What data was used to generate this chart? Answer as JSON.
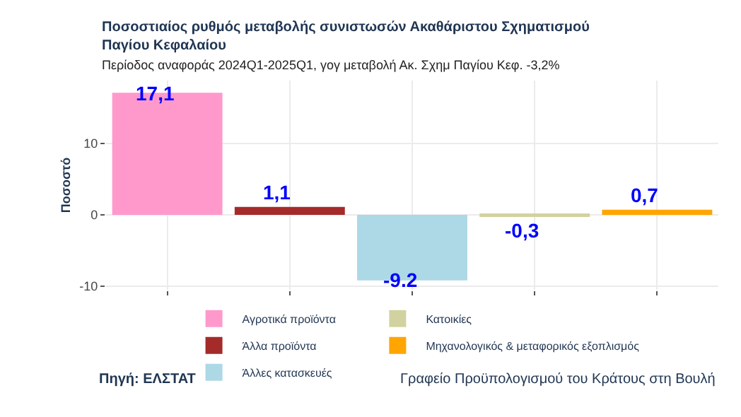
{
  "chart_data": {
    "type": "bar",
    "title": "Ποσοστιαίος ρυθμός μεταβολής συνιστωσών Ακαθάριστου Σχηματισμού\nΠαγίου Κεφαλαίου",
    "subtitle": "Περίοδος αναφοράς 2024Q1-2025Q1, γογ μεταβολή Ακ. Σχημ Παγίου Κεφ. -3,2%",
    "ylabel": "Ποσοστό",
    "categories": [
      null,
      null,
      null,
      null,
      null
    ],
    "stacked": true,
    "series": [
      {
        "name": "Αγροτικά προϊόντα",
        "color": "#ff99cc",
        "values": [
          17.1,
          null,
          null,
          null,
          null
        ],
        "value_labels": [
          "17,1",
          null,
          null,
          null,
          null
        ]
      },
      {
        "name": "Άλλα προϊόντα",
        "color": "#a52a2a",
        "values": [
          null,
          1.1,
          null,
          null,
          null
        ],
        "value_labels": [
          null,
          "1,1",
          null,
          null,
          null
        ]
      },
      {
        "name": "Άλλες κατασκευές",
        "color": "#add8e6",
        "values": [
          null,
          null,
          -9.2,
          null,
          null
        ],
        "value_labels": [
          null,
          null,
          "-9.2",
          null,
          null
        ]
      },
      {
        "name": "Κατοικίες",
        "color": "#d2d2a0",
        "values": [
          null,
          null,
          null,
          -0.3,
          null
        ],
        "value_labels": [
          null,
          null,
          null,
          "-0,3",
          null
        ]
      },
      {
        "name": "Μηχανολογικός & μεταφορικός εξοπλισμός",
        "color": "#ffa500",
        "values": [
          null,
          null,
          null,
          null,
          0.7
        ],
        "value_labels": [
          null,
          null,
          null,
          null,
          "0,7"
        ]
      }
    ],
    "ylim": [
      -10.5,
      18.8
    ],
    "yticks": [
      -10,
      0,
      10
    ],
    "grid": true,
    "legend": "bottom",
    "tick_labels": "y",
    "annotations": [
      "Πηγή: ΕΛΣΤΑΤ",
      "Γραφείο Προϋπολογισμού του Κράτους στη Βουλή"
    ]
  }
}
